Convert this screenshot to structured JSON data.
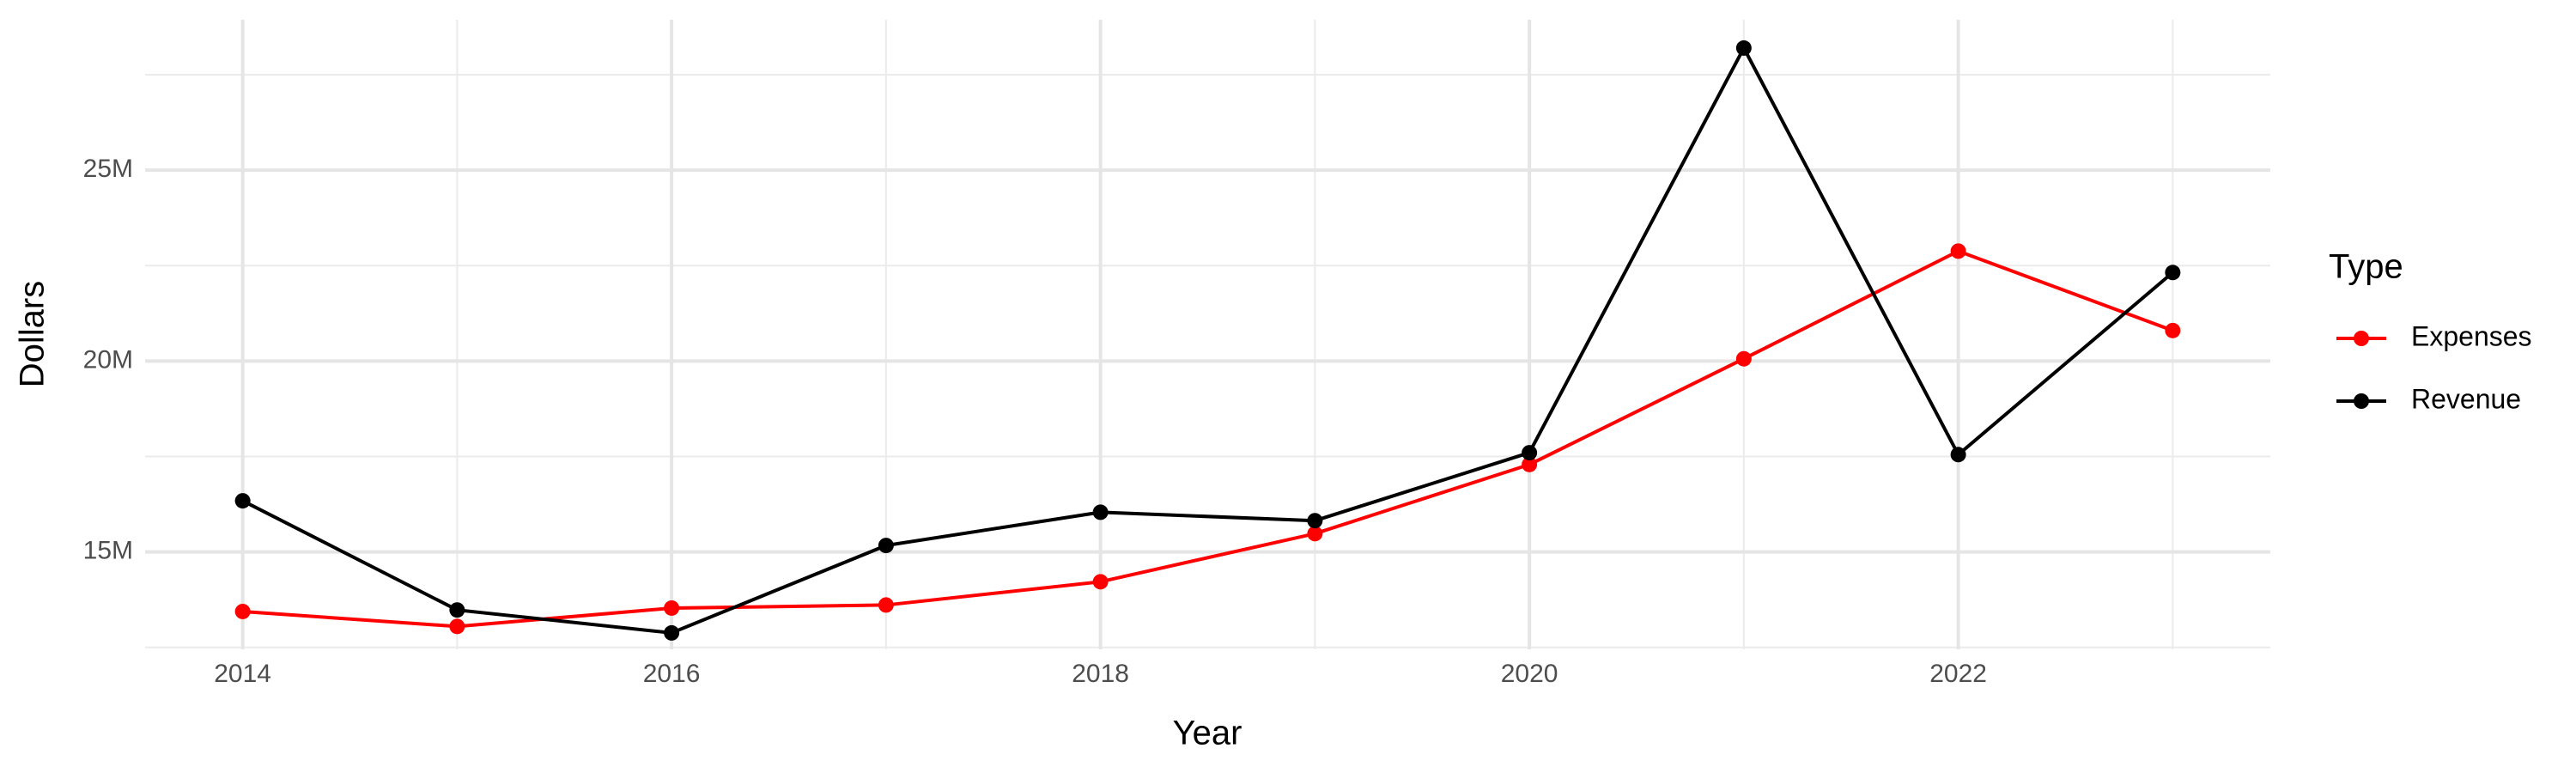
{
  "chart_data": {
    "type": "line",
    "x_label": "Year",
    "y_label": "Dollars",
    "legend_title": "Type",
    "legend": "right",
    "x": [
      2014,
      2015,
      2016,
      2017,
      2018,
      2019,
      2020,
      2021,
      2022,
      2023
    ],
    "series": [
      {
        "name": "Expenses",
        "color": "#ff0000",
        "values": [
          13440000,
          13050000,
          13530000,
          13610000,
          14220000,
          15480000,
          17290000,
          20060000,
          22880000,
          20800000
        ]
      },
      {
        "name": "Revenue",
        "color": "#000000",
        "values": [
          16340000,
          13480000,
          12880000,
          15170000,
          16040000,
          15820000,
          17600000,
          28200000,
          17550000,
          22320000
        ]
      }
    ],
    "xlim": [
      2013.545,
      2023.455
    ],
    "xticks": [
      2014,
      2016,
      2018,
      2020,
      2022
    ],
    "ylim": [
      12450000,
      28940000
    ],
    "yticks": [
      {
        "value": 15000000,
        "label": "15M"
      },
      {
        "value": 20000000,
        "label": "20M"
      },
      {
        "value": 25000000,
        "label": "25M"
      }
    ],
    "grid": true
  }
}
